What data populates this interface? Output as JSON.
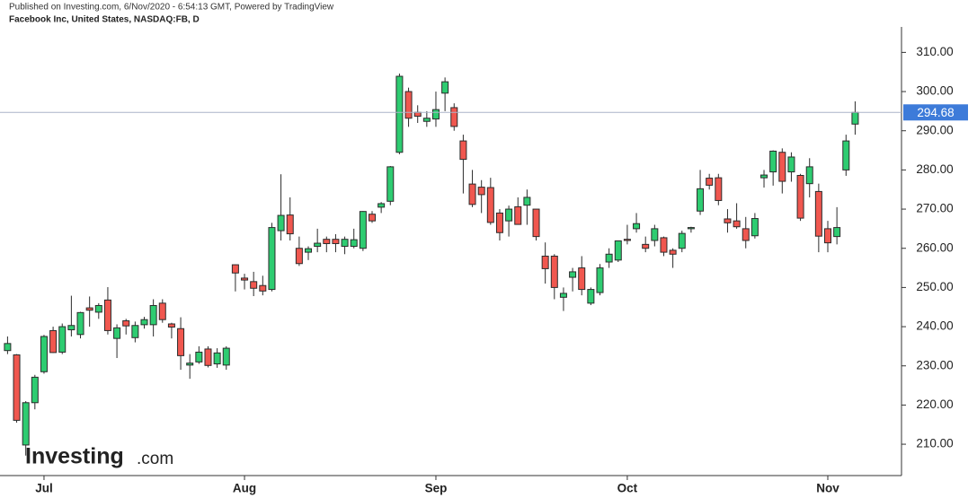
{
  "publisher_line": "Published on Investing.com, 6/Nov/2020 - 6:54:13 GMT, Powered by TradingView",
  "logo": {
    "name": "Investing",
    "suffix": ".com"
  },
  "chart_data": {
    "type": "candlestick",
    "title": "Facebook Inc, United States, NASDAQ:FB, D",
    "categories": [
      null,
      null,
      null,
      null,
      "Jul",
      null,
      null,
      null,
      null,
      null,
      null,
      null,
      null,
      null,
      null,
      null,
      null,
      null,
      null,
      null,
      null,
      null,
      null,
      null,
      null,
      null,
      "Aug",
      null,
      null,
      null,
      null,
      null,
      null,
      null,
      null,
      null,
      null,
      null,
      null,
      null,
      null,
      null,
      null,
      null,
      null,
      null,
      null,
      "Sep",
      null,
      null,
      null,
      null,
      null,
      null,
      null,
      null,
      null,
      null,
      null,
      null,
      null,
      null,
      null,
      null,
      null,
      null,
      null,
      null,
      "Oct",
      null,
      null,
      null,
      null,
      null,
      null,
      null,
      null,
      null,
      null,
      null,
      null,
      null,
      null,
      null,
      null,
      null,
      null,
      null,
      null,
      null,
      "Nov",
      null,
      null,
      null
    ],
    "open": [
      233.9,
      232.8,
      209.8,
      220.6,
      228.5,
      239,
      233.5,
      239.2,
      238,
      244.8,
      243.7,
      246.8,
      237,
      241.5,
      237.2,
      240.5,
      240.5,
      246,
      240.7,
      239.5,
      230.2,
      231,
      234.3,
      230.5,
      230.2,
      255.8,
      252.4,
      251.5,
      250.5,
      249.5,
      264.5,
      268.5,
      260,
      259,
      260.5,
      262.3,
      262.3,
      260.5,
      260.5,
      260,
      268.7,
      270.5,
      272,
      284.5,
      300,
      294.7,
      292.4,
      293,
      299.6,
      295.9,
      287.4,
      276.4,
      275.6,
      275.5,
      269,
      267,
      270.6,
      271,
      270,
      258,
      258,
      247.5,
      252.6,
      255,
      246,
      248.7,
      256.5,
      257,
      262.3,
      265,
      261,
      262,
      262.7,
      259.5,
      260,
      265,
      269.5,
      277.9,
      278,
      267.5,
      267,
      265,
      263.2,
      278,
      279.5,
      284.5,
      279.5,
      278.6,
      276.5,
      274.5,
      265,
      263,
      280,
      291.7
    ],
    "high": [
      237.5,
      233,
      221,
      227.7,
      237.9,
      240,
      240.8,
      247.9,
      243.8,
      247.7,
      246,
      250.1,
      240.6,
      242,
      241.3,
      242.5,
      247,
      247,
      241,
      242.4,
      233,
      235,
      235,
      234.5,
      235,
      255.9,
      253.5,
      254,
      253,
      266.5,
      278.9,
      273,
      263,
      260.5,
      265,
      263,
      263.6,
      263,
      265,
      269.5,
      269.5,
      271.8,
      281,
      304.6,
      301,
      296.5,
      295,
      300,
      303.6,
      297,
      289,
      280,
      277.4,
      278,
      270,
      270.9,
      273,
      275,
      270,
      261.5,
      258.5,
      250,
      255,
      258,
      250,
      256,
      260,
      262,
      266,
      269,
      263,
      266,
      263,
      260,
      264.5,
      265.5,
      280,
      279,
      279,
      270,
      271.5,
      268,
      269,
      280,
      285,
      285.5,
      284.5,
      279,
      283,
      276.5,
      267,
      270.5,
      289,
      297.5
    ],
    "low": [
      233,
      215.5,
      207.1,
      218.9,
      228,
      233.3,
      233,
      237.5,
      237,
      240,
      242,
      238,
      232,
      238,
      236,
      239.5,
      237.5,
      241,
      237,
      229,
      226.7,
      230.5,
      229.6,
      229.5,
      229,
      249,
      249.5,
      247.8,
      248,
      249,
      262,
      262,
      255.5,
      257,
      259,
      259,
      259,
      258.5,
      260,
      259.3,
      266.5,
      269,
      271,
      284,
      291,
      292,
      291,
      291,
      295,
      290,
      274,
      270.5,
      269,
      266,
      262,
      263,
      266,
      266,
      262,
      251,
      247,
      244,
      249,
      248,
      245.5,
      248,
      255,
      256.5,
      261,
      264,
      259,
      260.5,
      258,
      255,
      259,
      264,
      268.5,
      275,
      271,
      264,
      265,
      260,
      262.5,
      275.5,
      276,
      274,
      277,
      267,
      273,
      259,
      259,
      261,
      278.5,
      289
    ],
    "close": [
      235.7,
      216.1,
      220.6,
      227.1,
      237.5,
      233.4,
      240,
      240.3,
      243.6,
      244.2,
      245.4,
      239,
      239.7,
      240.2,
      240.3,
      241.8,
      245.4,
      241.8,
      239.9,
      232.6,
      230.7,
      233.5,
      230.1,
      233.3,
      234.5,
      253.7,
      251.9,
      249.8,
      249.1,
      265.3,
      268.4,
      263.7,
      256.1,
      259.9,
      261.3,
      261.2,
      261.2,
      262.3,
      262.2,
      269.4,
      267,
      271.4,
      280.8,
      303.9,
      293.2,
      293.7,
      293.2,
      295.4,
      302.5,
      291.1,
      282.7,
      271.2,
      273.7,
      266.6,
      264,
      270,
      266.1,
      273,
      263,
      254.8,
      250,
      248.5,
      254,
      249.5,
      249.5,
      255,
      258.5,
      261.9,
      262,
      266.3,
      260,
      265,
      259,
      258.5,
      263.8,
      265.3,
      275.2,
      276.1,
      272.2,
      266.5,
      265.5,
      262,
      267.6,
      278.7,
      284.8,
      277.1,
      283.3,
      267.7,
      280.8,
      263.1,
      261.4,
      265.3,
      287.4,
      294.68
    ],
    "up_color": "#2ecc71",
    "down_color": "#f0574f",
    "outline_color": "#2b2b2b",
    "last_price": 294.68,
    "last_price_color": "#3d7bd9",
    "ylim": [
      202,
      316.5
    ],
    "yticks": [
      {
        "value": 210,
        "label": "210.00"
      },
      {
        "value": 220,
        "label": "220.00"
      },
      {
        "value": 230,
        "label": "230.00"
      },
      {
        "value": 240,
        "label": "240.00"
      },
      {
        "value": 250,
        "label": "250.00"
      },
      {
        "value": 260,
        "label": "260.00"
      },
      {
        "value": 270,
        "label": "270.00"
      },
      {
        "value": 280,
        "label": "280.00"
      },
      {
        "value": 290,
        "label": "290.00"
      },
      {
        "value": 300,
        "label": "300.00"
      },
      {
        "value": 310,
        "label": "310.00"
      }
    ]
  }
}
